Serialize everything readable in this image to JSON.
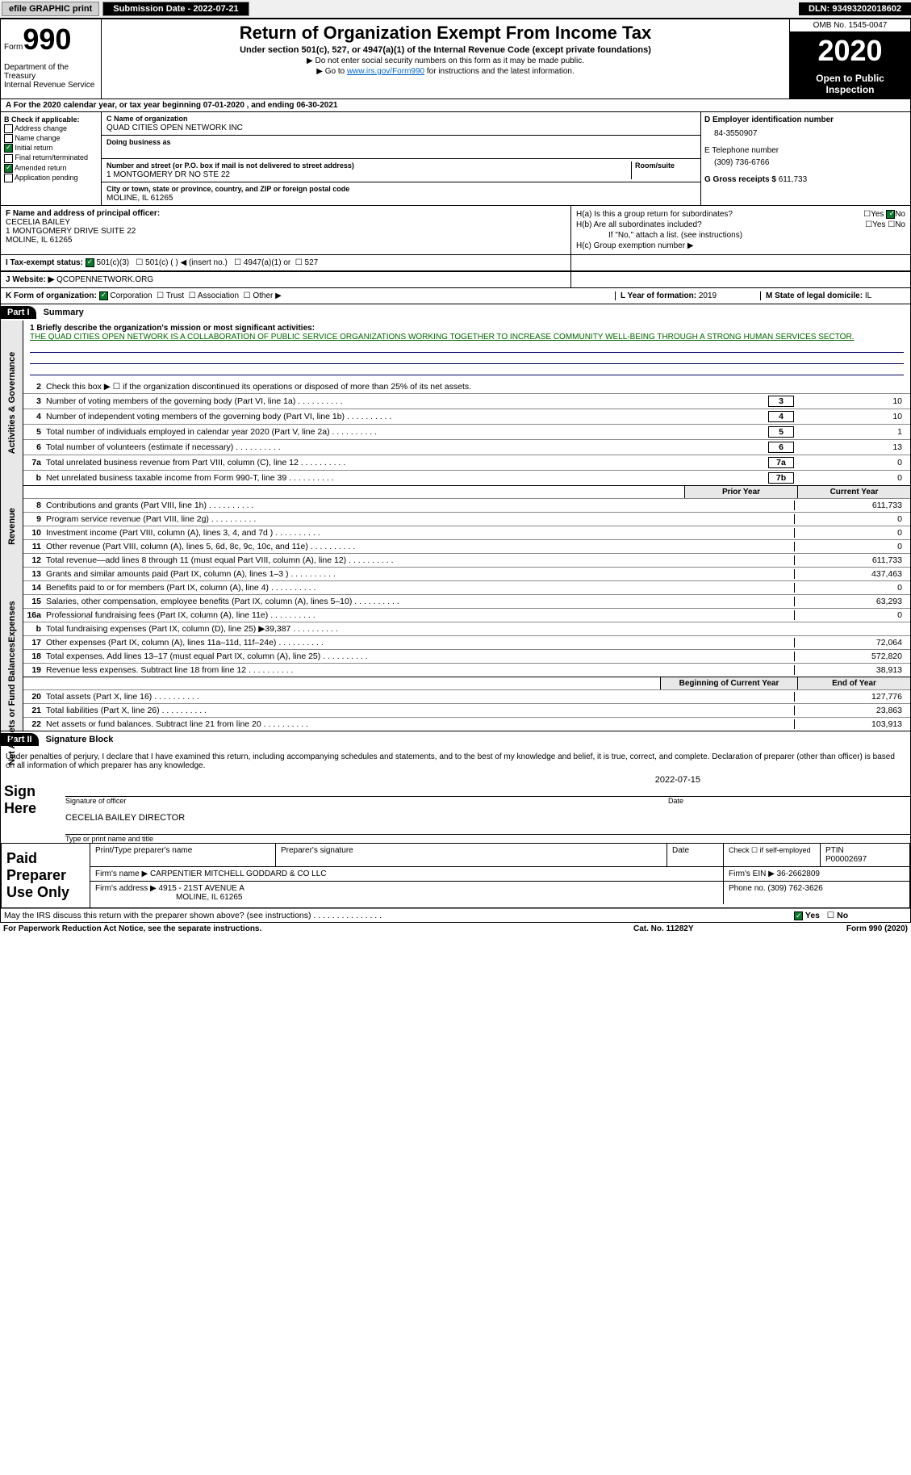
{
  "topbar": {
    "efile": "efile GRAPHIC print",
    "submission_label": "Submission Date - 2022-07-21",
    "dln": "DLN: 93493202018602"
  },
  "header": {
    "form_label": "Form",
    "form_number": "990",
    "dept": "Department of the Treasury\nInternal Revenue Service",
    "title": "Return of Organization Exempt From Income Tax",
    "subtitle": "Under section 501(c), 527, or 4947(a)(1) of the Internal Revenue Code (except private foundations)",
    "note1": "▶ Do not enter social security numbers on this form as it may be made public.",
    "note2_prefix": "▶ Go to ",
    "note2_link": "www.irs.gov/Form990",
    "note2_suffix": " for instructions and the latest information.",
    "omb": "OMB No. 1545-0047",
    "year": "2020",
    "open": "Open to Public Inspection"
  },
  "line_a": "A For the 2020 calendar year, or tax year beginning 07-01-2020   , and ending 06-30-2021",
  "section_b": {
    "title": "B Check if applicable:",
    "opts": [
      "Address change",
      "Name change",
      "Initial return",
      "Final return/terminated",
      "Amended return",
      "Application pending"
    ],
    "checked": [
      false,
      false,
      true,
      false,
      true,
      false
    ]
  },
  "section_c": {
    "name_lbl": "C Name of organization",
    "name": "QUAD CITIES OPEN NETWORK INC",
    "dba_lbl": "Doing business as",
    "dba": "",
    "addr_lbl": "Number and street (or P.O. box if mail is not delivered to street address)",
    "room_lbl": "Room/suite",
    "addr": "1 MONTGOMERY DR NO STE 22",
    "city_lbl": "City or town, state or province, country, and ZIP or foreign postal code",
    "city": "MOLINE, IL  61265"
  },
  "section_d": {
    "lbl": "D Employer identification number",
    "val": "84-3550907"
  },
  "section_e": {
    "lbl": "E Telephone number",
    "val": "(309) 736-6766"
  },
  "section_g": {
    "lbl": "G Gross receipts $",
    "val": "611,733"
  },
  "section_f": {
    "lbl": "F Name and address of principal officer:",
    "name": "CECELIA BAILEY",
    "addr1": "1 MONTGOMERY DRIVE SUITE 22",
    "addr2": "MOLINE, IL  61265"
  },
  "section_h": {
    "a": "H(a)  Is this a group return for subordinates?",
    "a_yes": "Yes",
    "a_no": "No",
    "b": "H(b)  Are all subordinates included?",
    "b_note": "If \"No,\" attach a list. (see instructions)",
    "c": "H(c)  Group exemption number ▶"
  },
  "section_i": {
    "lbl": "I  Tax-exempt status:",
    "o1": "501(c)(3)",
    "o2": "501(c) (   ) ◀ (insert no.)",
    "o3": "4947(a)(1) or",
    "o4": "527"
  },
  "section_j": {
    "lbl": "J  Website: ▶",
    "val": "QCOPENNETWORK.ORG"
  },
  "section_k": {
    "lbl": "K Form of organization:",
    "opts": [
      "Corporation",
      "Trust",
      "Association",
      "Other ▶"
    ]
  },
  "section_l": {
    "lbl": "L Year of formation:",
    "val": "2019"
  },
  "section_m": {
    "lbl": "M State of legal domicile:",
    "val": "IL"
  },
  "part1": {
    "hdr": "Part I",
    "title": "Summary",
    "q1_lbl": "1  Briefly describe the organization's mission or most significant activities:",
    "q1_text": "THE QUAD CITIES OPEN NETWORK IS A COLLABORATION OF PUBLIC SERVICE ORGANIZATIONS WORKING TOGETHER TO INCREASE COMMUNITY WELL-BEING THROUGH A STRONG HUMAN SERVICES SECTOR.",
    "q2": "Check this box ▶ ☐  if the organization discontinued its operations or disposed of more than 25% of its net assets.",
    "gov_label": "Activities & Governance",
    "rev_label": "Revenue",
    "exp_label": "Expenses",
    "net_label": "Net Assets or Fund Balances",
    "rows_gov": [
      {
        "n": "3",
        "d": "Number of voting members of the governing body (Part VI, line 1a)",
        "box": "3",
        "val": "10"
      },
      {
        "n": "4",
        "d": "Number of independent voting members of the governing body (Part VI, line 1b)",
        "box": "4",
        "val": "10"
      },
      {
        "n": "5",
        "d": "Total number of individuals employed in calendar year 2020 (Part V, line 2a)",
        "box": "5",
        "val": "1"
      },
      {
        "n": "6",
        "d": "Total number of volunteers (estimate if necessary)",
        "box": "6",
        "val": "13"
      },
      {
        "n": "7a",
        "d": "Total unrelated business revenue from Part VIII, column (C), line 12",
        "box": "7a",
        "val": "0"
      },
      {
        "n": "b",
        "d": "Net unrelated business taxable income from Form 990-T, line 39",
        "box": "7b",
        "val": "0"
      }
    ],
    "col_hdr_prior": "Prior Year",
    "col_hdr_curr": "Current Year",
    "rows_rev": [
      {
        "n": "8",
        "d": "Contributions and grants (Part VIII, line 1h)",
        "p": "",
        "c": "611,733"
      },
      {
        "n": "9",
        "d": "Program service revenue (Part VIII, line 2g)",
        "p": "",
        "c": "0"
      },
      {
        "n": "10",
        "d": "Investment income (Part VIII, column (A), lines 3, 4, and 7d )",
        "p": "",
        "c": "0"
      },
      {
        "n": "11",
        "d": "Other revenue (Part VIII, column (A), lines 5, 6d, 8c, 9c, 10c, and 11e)",
        "p": "",
        "c": "0"
      },
      {
        "n": "12",
        "d": "Total revenue—add lines 8 through 11 (must equal Part VIII, column (A), line 12)",
        "p": "",
        "c": "611,733"
      }
    ],
    "rows_exp": [
      {
        "n": "13",
        "d": "Grants and similar amounts paid (Part IX, column (A), lines 1–3 )",
        "p": "",
        "c": "437,463"
      },
      {
        "n": "14",
        "d": "Benefits paid to or for members (Part IX, column (A), line 4)",
        "p": "",
        "c": "0"
      },
      {
        "n": "15",
        "d": "Salaries, other compensation, employee benefits (Part IX, column (A), lines 5–10)",
        "p": "",
        "c": "63,293"
      },
      {
        "n": "16a",
        "d": "Professional fundraising fees (Part IX, column (A), line 11e)",
        "p": "",
        "c": "0"
      },
      {
        "n": "b",
        "d": "Total fundraising expenses (Part IX, column (D), line 25) ▶39,387",
        "p": "__shade__",
        "c": "__shade__"
      },
      {
        "n": "17",
        "d": "Other expenses (Part IX, column (A), lines 11a–11d, 11f–24e)",
        "p": "",
        "c": "72,064"
      },
      {
        "n": "18",
        "d": "Total expenses. Add lines 13–17 (must equal Part IX, column (A), line 25)",
        "p": "",
        "c": "572,820"
      },
      {
        "n": "19",
        "d": "Revenue less expenses. Subtract line 18 from line 12",
        "p": "",
        "c": "38,913"
      }
    ],
    "col_hdr_beg": "Beginning of Current Year",
    "col_hdr_end": "End of Year",
    "rows_net": [
      {
        "n": "20",
        "d": "Total assets (Part X, line 16)",
        "p": "",
        "c": "127,776"
      },
      {
        "n": "21",
        "d": "Total liabilities (Part X, line 26)",
        "p": "",
        "c": "23,863"
      },
      {
        "n": "22",
        "d": "Net assets or fund balances. Subtract line 21 from line 20",
        "p": "",
        "c": "103,913"
      }
    ]
  },
  "part2": {
    "hdr": "Part II",
    "title": "Signature Block",
    "decl": "Under penalties of perjury, I declare that I have examined this return, including accompanying schedules and statements, and to the best of my knowledge and belief, it is true, correct, and complete. Declaration of preparer (other than officer) is based on all information of which preparer has any knowledge.",
    "sign_here": "Sign Here",
    "sig_officer": "Signature of officer",
    "sig_date_lbl": "Date",
    "sig_date": "2022-07-15",
    "sig_name": "CECELIA BAILEY DIRECTOR",
    "sig_name_lbl": "Type or print name and title",
    "paid": "Paid Preparer Use Only",
    "prep_name_lbl": "Print/Type preparer's name",
    "prep_sig_lbl": "Preparer's signature",
    "prep_date_lbl": "Date",
    "prep_self": "Check ☐ if self-employed",
    "ptin_lbl": "PTIN",
    "ptin": "P00002697",
    "firm_name_lbl": "Firm's name   ▶",
    "firm_name": "CARPENTIER MITCHELL GODDARD & CO LLC",
    "firm_ein_lbl": "Firm's EIN ▶",
    "firm_ein": "36-2662809",
    "firm_addr_lbl": "Firm's address ▶",
    "firm_addr1": "4915 - 21ST AVENUE A",
    "firm_addr2": "MOLINE, IL  61265",
    "phone_lbl": "Phone no.",
    "phone": "(309) 762-3626",
    "may_irs": "May the IRS discuss this return with the preparer shown above? (see instructions)",
    "yes": "Yes",
    "no": "No"
  },
  "footer": {
    "pra": "For Paperwork Reduction Act Notice, see the separate instructions.",
    "cat": "Cat. No. 11282Y",
    "form": "Form 990 (2020)"
  },
  "colors": {
    "link": "#0066cc",
    "green": "#006600",
    "shade": "#d0d0d0"
  }
}
